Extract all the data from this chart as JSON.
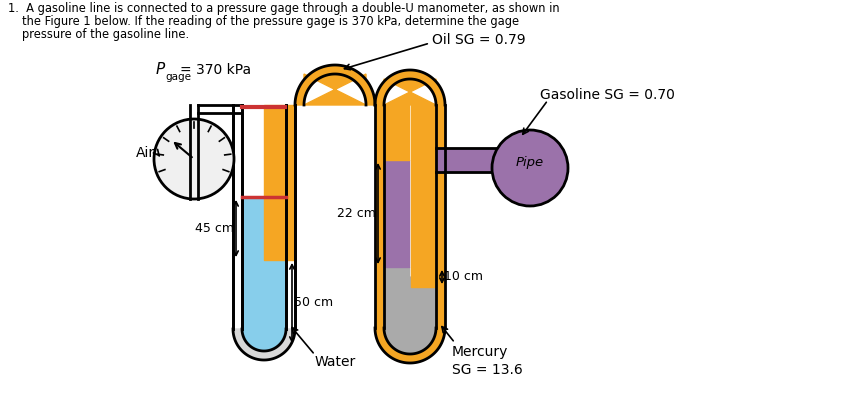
{
  "oil_label": "Oil SG = 0.79",
  "gasoline_label": "Gasoline SG = 0.70",
  "air_label": "Air",
  "pipe_label": "Pipe",
  "water_label": "Water",
  "mercury_label": "Mercury\nSG = 13.6",
  "dim_45": "45 cm",
  "dim_50": "50 cm",
  "dim_22": "22 cm",
  "dim_10": "10 cm",
  "color_water": "#87CEEB",
  "color_oil": "#F5A623",
  "color_mercury": "#AAAAAA",
  "color_gasoline_pipe": "#9B72AA",
  "color_tube_wall": "#CCCCCC",
  "color_gauge_face": "#F0F0F0",
  "background": "#FFFFFF",
  "title_line1": "1.  A gasoline line is connected to a pressure gage through a double-U manometer, as shown in",
  "title_line2": "the Figure 1 below. If the reading of the pressure gage is 370 kPa, determine the gage",
  "title_line3": "pressure of the gasoline line."
}
